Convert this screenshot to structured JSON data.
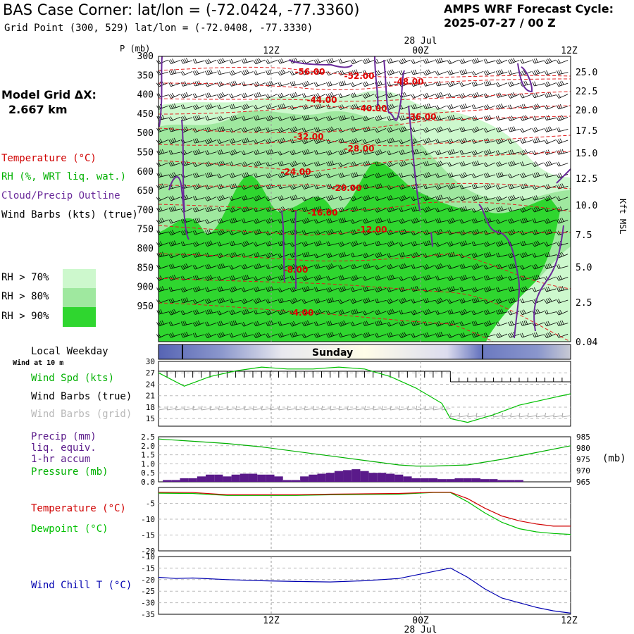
{
  "header": {
    "title": "BAS Case Corner:  lat/lon = (-72.0424, -77.3360)",
    "subtitle": "Grid Point (300, 529) lat/lon = (-72.0408, -77.3330)",
    "cycle_label": "AMPS WRF Forecast Cycle:",
    "cycle_value": "2025-07-27 / 00  Z"
  },
  "legend": {
    "grid_label": "Model Grid ΔX:",
    "grid_value": "2.667 km",
    "temperature": "Temperature (°C)",
    "rh": "RH (%, WRT liq. wat.)",
    "cloud": "Cloud/Precip Outline",
    "wind": "Wind Barbs (kts) (true)",
    "rh_levels": [
      {
        "label": "RH > 70%",
        "color": "#cdf8cd"
      },
      {
        "label": "RH > 80%",
        "color": "#9fe89f"
      },
      {
        "label": "RH > 90%",
        "color": "#2fd62f"
      }
    ]
  },
  "time_axis": {
    "top_date": "28 Jul",
    "bottom_date": "28 Jul",
    "ticks": [
      "12Z",
      "00Z",
      "12Z"
    ]
  },
  "weekday": {
    "label": "Local Weekday",
    "sublabel": "Wind at 10 m",
    "day": "Sunday"
  },
  "panel_labels": {
    "pressure_axis": "P (mb)",
    "height_axis": "Kft MSL",
    "wind_spd": "Wind Spd (kts)",
    "wind_barbs_true": "Wind Barbs (true)",
    "wind_barbs_grid": "Wind Barbs (grid)",
    "precip_1": "Precip (mm)",
    "precip_2": "liq. equiv.",
    "precip_3": "1-hr accum",
    "pressure": "Pressure (mb)",
    "pressure_unit": "(mb)",
    "temperature": "Temperature (°C)",
    "dewpoint": "Dewpoint (°C)",
    "wind_chill": "Wind Chill T (°C)"
  },
  "colors": {
    "temperature": "#d00000",
    "dewpoint": "#00c000",
    "rh": "#00b000",
    "cloud": "#6a2a9a",
    "precip": "#5a1a8a",
    "wind_chill": "#0000b0",
    "day_band": "#5664b4"
  },
  "chart_data": [
    {
      "type": "heatmap",
      "name": "time-height cross section",
      "pressure_levels_mb": [
        "300",
        "350",
        "400",
        "450",
        "500",
        "550",
        "600",
        "650",
        "700",
        "750",
        "800",
        "850",
        "900",
        "950"
      ],
      "height_kft": [
        "25.0",
        "22.5",
        "20.0",
        "17.5",
        "15.0",
        "12.5",
        "10.0",
        "7.5",
        "5.0",
        "2.5",
        "0.04"
      ],
      "isotherms_c": [
        "-56.00",
        "-52.00",
        "-48.00",
        "-44.00",
        "-40.00",
        "-36.00",
        "-32.00",
        "-28.00",
        "-24.00",
        "-20.00",
        "-16.00",
        "-12.00",
        "-8.00",
        "-4.00"
      ]
    },
    {
      "type": "line",
      "name": "wind speed 10 m",
      "yticks": [
        "30",
        "27",
        "24",
        "21",
        "18",
        "15"
      ],
      "ylim": [
        13,
        30
      ],
      "x_hours": [
        0,
        3,
        6,
        9,
        12,
        15,
        18,
        21,
        24,
        27,
        30,
        33,
        34,
        36,
        39,
        42,
        45,
        48
      ],
      "values": [
        27,
        23.5,
        26,
        27.5,
        28.5,
        28,
        28,
        28.5,
        28,
        26,
        23,
        19,
        15,
        14,
        16,
        18.5,
        20,
        21.5
      ]
    },
    {
      "type": "bar",
      "name": "precip and pressure",
      "yticks_left": [
        "2.5",
        "2.0",
        "1.5",
        "1.0",
        "0.5",
        "0.0"
      ],
      "yticks_right": [
        "985",
        "980",
        "975",
        "970",
        "965"
      ],
      "ylim_left": [
        0,
        2.5
      ],
      "ylim_right": [
        965,
        985
      ],
      "precip_hours": [
        1,
        2,
        3,
        4,
        5,
        6,
        7,
        8,
        9,
        10,
        11,
        12,
        13,
        14,
        15,
        16,
        17,
        18,
        19,
        20,
        21,
        22,
        23,
        24,
        25,
        26,
        27,
        28,
        29,
        30,
        31,
        32,
        33,
        34,
        35,
        36,
        37,
        38,
        39,
        40,
        41,
        42
      ],
      "precip_mm": [
        0.1,
        0.1,
        0.2,
        0.2,
        0.3,
        0.4,
        0.4,
        0.3,
        0.4,
        0.45,
        0.45,
        0.4,
        0.4,
        0.3,
        0.1,
        0.1,
        0.3,
        0.4,
        0.45,
        0.5,
        0.6,
        0.65,
        0.7,
        0.6,
        0.5,
        0.5,
        0.45,
        0.4,
        0.3,
        0.2,
        0.2,
        0.2,
        0.15,
        0.15,
        0.2,
        0.2,
        0.2,
        0.15,
        0.15,
        0.1,
        0.1,
        0.1
      ],
      "pressure_hours": [
        0,
        4,
        8,
        12,
        16,
        20,
        24,
        28,
        30,
        32,
        36,
        40,
        44,
        48
      ],
      "pressure_mb": [
        984,
        983,
        982,
        980.5,
        978.5,
        976.5,
        974.5,
        972.5,
        972,
        972,
        972.5,
        975,
        978,
        981
      ]
    },
    {
      "type": "line",
      "name": "temperature and dewpoint",
      "yticks": [
        "-5",
        "-10",
        "-15",
        "-20"
      ],
      "ylim": [
        -20,
        0
      ],
      "x_hours": [
        0,
        4,
        8,
        12,
        16,
        20,
        24,
        28,
        32,
        34,
        36,
        38,
        40,
        42,
        44,
        46,
        48
      ],
      "series": [
        {
          "name": "Temperature (°C)",
          "values": [
            -1.5,
            -1.6,
            -2.3,
            -2.3,
            -2.3,
            -2.1,
            -2.0,
            -1.9,
            -1.5,
            -1.5,
            -3.5,
            -6.5,
            -9,
            -10.5,
            -11.5,
            -12.2,
            -12.2
          ]
        },
        {
          "name": "Dewpoint (°C)",
          "values": [
            -1.8,
            -1.9,
            -2.5,
            -2.5,
            -2.5,
            -2.3,
            -2.2,
            -2.1,
            -1.6,
            -1.6,
            -4.5,
            -8,
            -11,
            -13,
            -14,
            -14.5,
            -14.8
          ]
        }
      ]
    },
    {
      "type": "line",
      "name": "wind chill",
      "yticks": [
        "-10",
        "-15",
        "-20",
        "-25",
        "-30",
        "-35"
      ],
      "ylim": [
        -35,
        -10
      ],
      "x_hours": [
        0,
        2,
        4,
        8,
        12,
        16,
        20,
        24,
        28,
        32,
        34,
        36,
        38,
        40,
        42,
        44,
        46,
        48
      ],
      "values": [
        -19,
        -19.5,
        -19.3,
        -20,
        -20.5,
        -20.8,
        -21,
        -20.5,
        -19.5,
        -16.5,
        -15,
        -19,
        -24,
        -28,
        -30,
        -32,
        -33.5,
        -34.5
      ]
    }
  ]
}
